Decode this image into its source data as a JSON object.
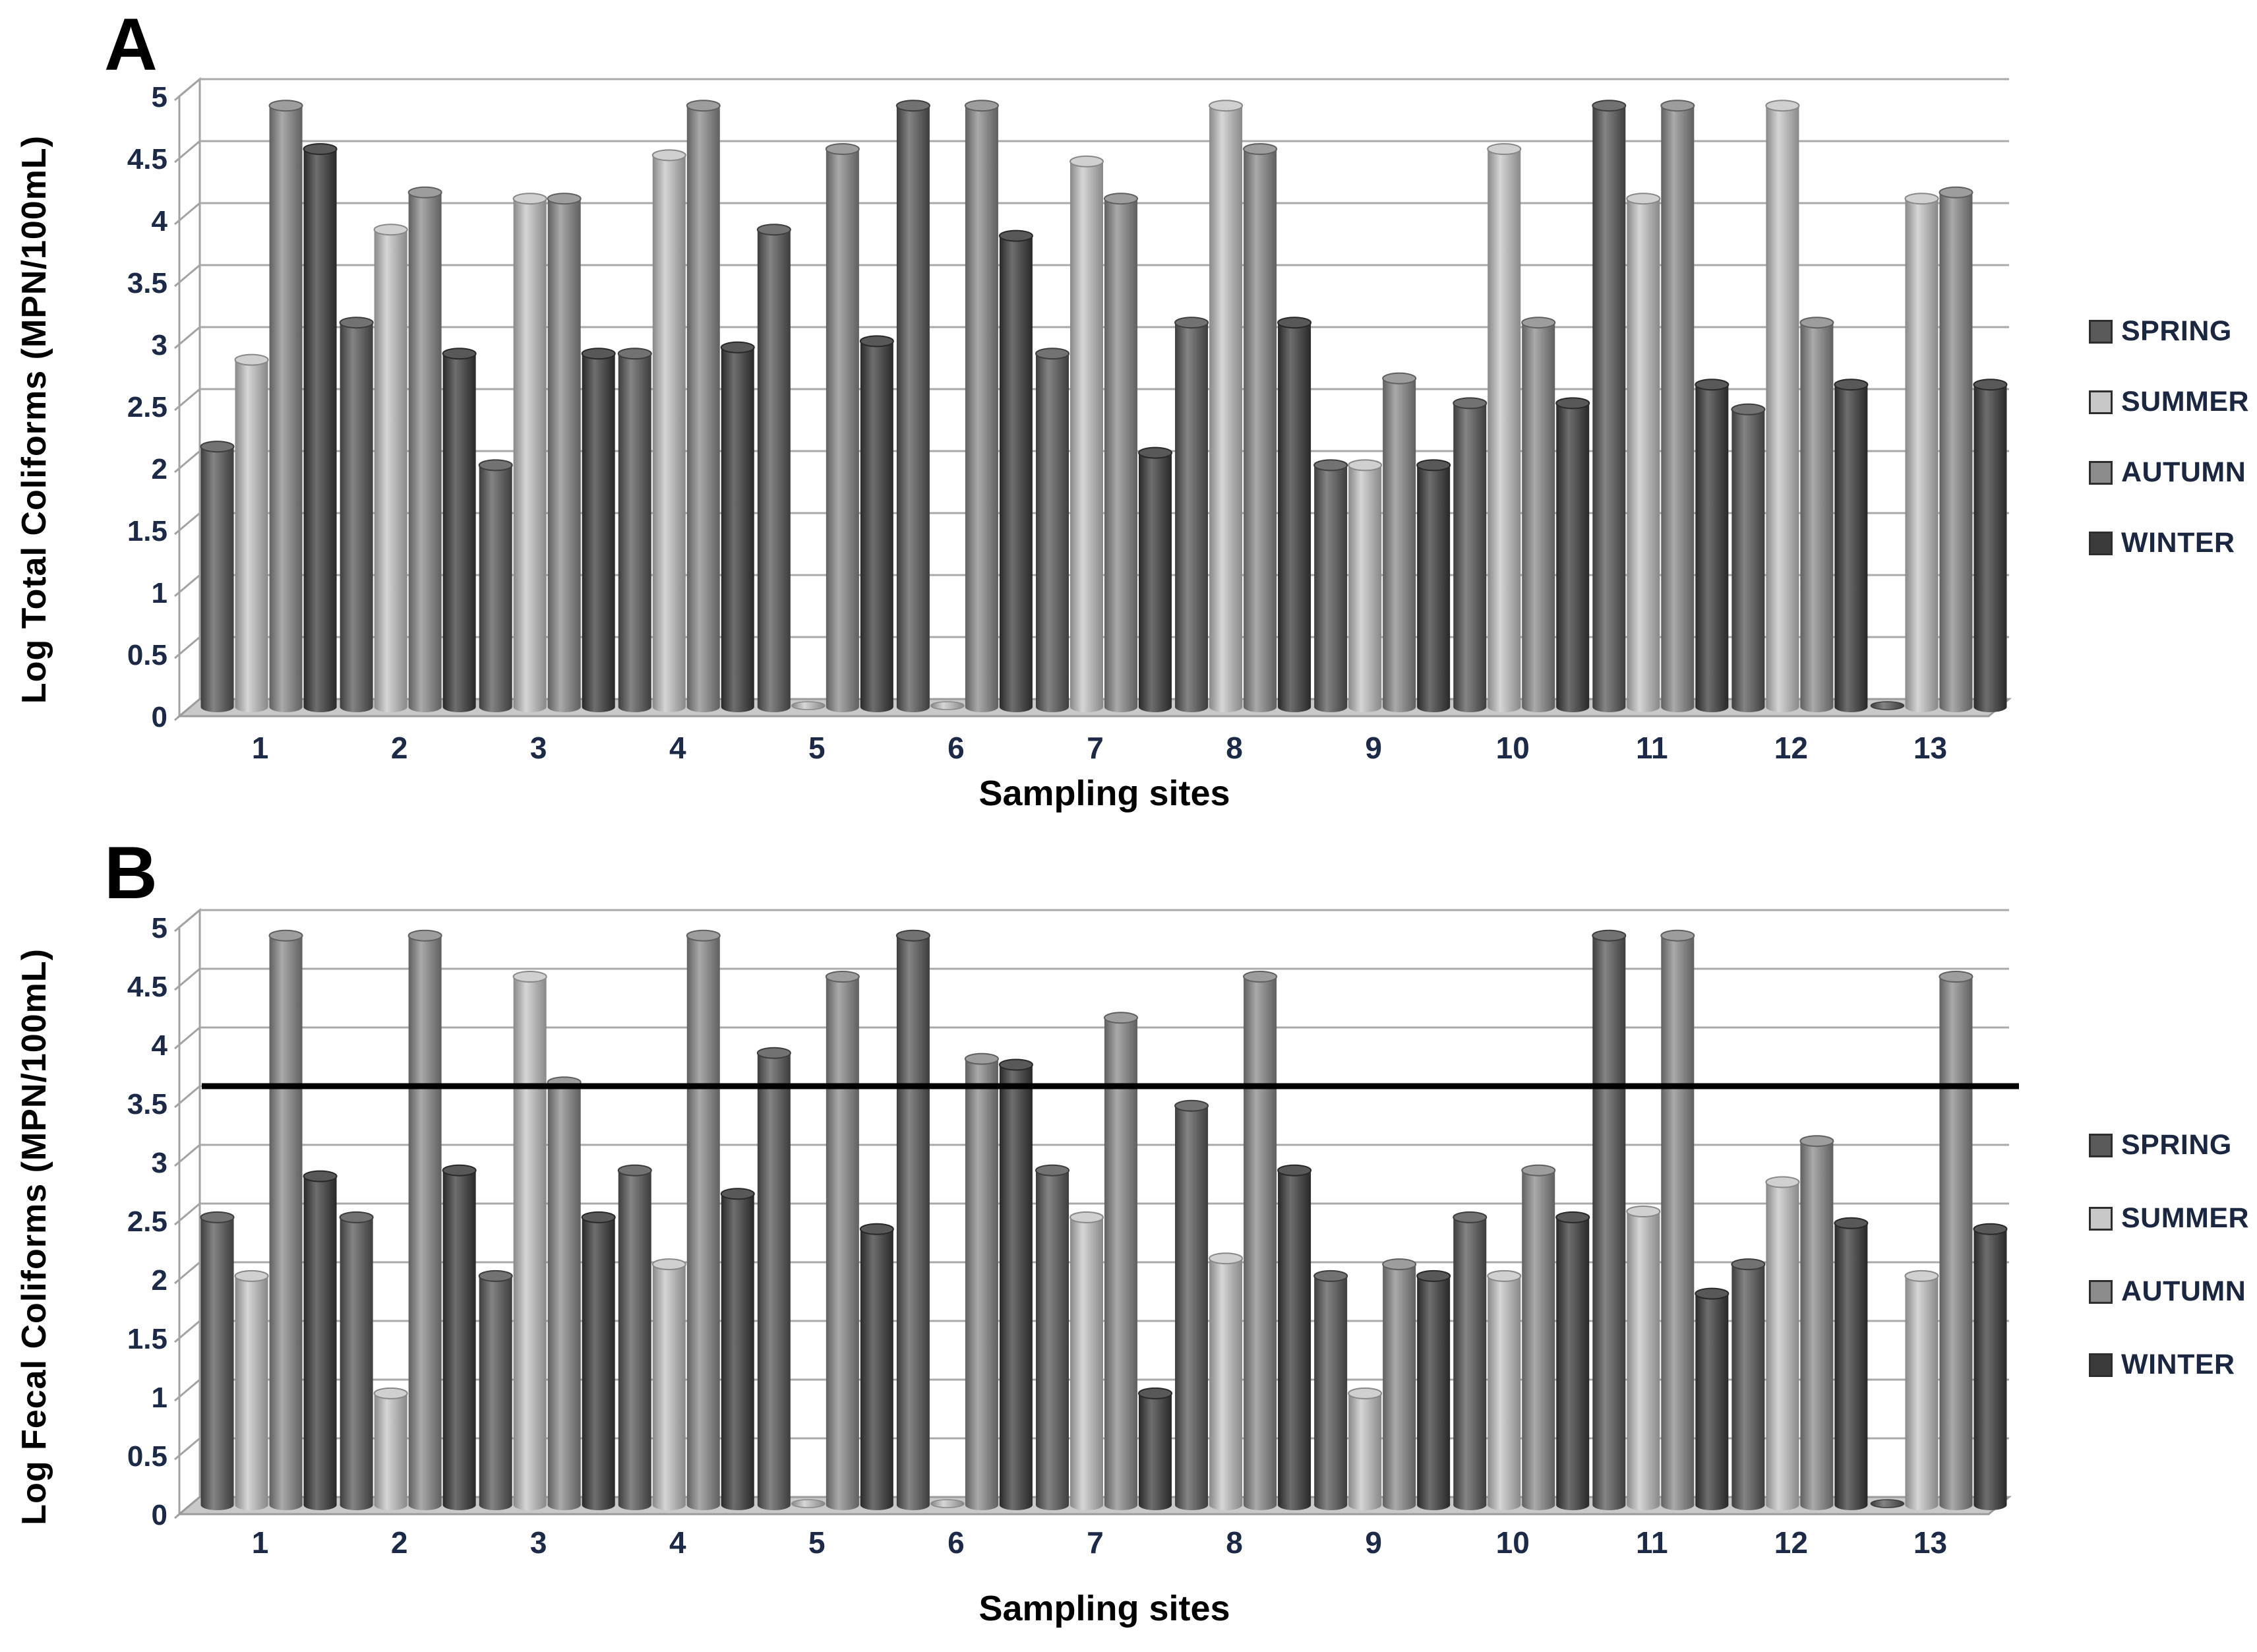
{
  "legend": {
    "items": [
      {
        "label": "SPRING",
        "color": "#595959"
      },
      {
        "label": "SUMMER",
        "color": "#c8c8c8"
      },
      {
        "label": "AUTUMN",
        "color": "#8c8c8c"
      },
      {
        "label": "WINTER",
        "color": "#3b3b3b"
      }
    ]
  },
  "y_tick_labels": [
    "0",
    "0.5",
    "1",
    "1.5",
    "2",
    "2.5",
    "3",
    "3.5",
    "4",
    "4.5",
    "5"
  ],
  "chart_data": [
    {
      "id": "A",
      "panel_label": "A",
      "type": "bar",
      "style": "3d-cylinder",
      "title": "",
      "xlabel": "Sampling sites",
      "ylabel": "Log Total Coliforms  (MPN/100mL)",
      "ylim": [
        0,
        5
      ],
      "ytick_step": 0.5,
      "grid": true,
      "legend_position": "right",
      "categories": [
        "1",
        "2",
        "3",
        "4",
        "5",
        "6",
        "7",
        "8",
        "9",
        "10",
        "11",
        "12",
        "13"
      ],
      "series": [
        {
          "name": "SPRING",
          "color": "#595959",
          "values": [
            2.1,
            3.1,
            1.95,
            2.85,
            3.85,
            4.85,
            2.85,
            3.1,
            1.95,
            2.45,
            4.85,
            2.4,
            0
          ]
        },
        {
          "name": "SUMMER",
          "color": "#c8c8c8",
          "values": [
            2.8,
            3.85,
            4.1,
            4.45,
            0,
            0,
            4.4,
            4.85,
            1.95,
            4.5,
            4.1,
            4.85,
            4.1
          ]
        },
        {
          "name": "AUTUMN",
          "color": "#8c8c8c",
          "values": [
            4.85,
            4.15,
            4.1,
            4.85,
            4.5,
            4.85,
            4.1,
            4.5,
            2.65,
            3.1,
            4.85,
            3.1,
            4.15
          ]
        },
        {
          "name": "WINTER",
          "color": "#3b3b3b",
          "values": [
            4.5,
            2.85,
            2.85,
            2.9,
            2.95,
            3.8,
            2.05,
            3.1,
            1.95,
            2.45,
            2.6,
            2.6,
            2.6
          ]
        }
      ]
    },
    {
      "id": "B",
      "panel_label": "B",
      "type": "bar",
      "style": "3d-cylinder",
      "title": "",
      "xlabel": "Sampling sites",
      "ylabel": "Log Fecal Coliforms  (MPN/100mL)",
      "ylim": [
        0,
        5
      ],
      "ytick_step": 0.5,
      "grid": true,
      "legend_position": "right",
      "threshold_line": {
        "value": 3.5,
        "color": "#000000"
      },
      "categories": [
        "1",
        "2",
        "3",
        "4",
        "5",
        "6",
        "7",
        "8",
        "9",
        "10",
        "11",
        "12",
        "13"
      ],
      "series": [
        {
          "name": "SPRING",
          "color": "#595959",
          "values": [
            2.45,
            2.45,
            1.95,
            2.85,
            3.85,
            4.85,
            2.85,
            3.4,
            1.95,
            2.45,
            4.85,
            2.05,
            0
          ]
        },
        {
          "name": "SUMMER",
          "color": "#c8c8c8",
          "values": [
            1.95,
            0.95,
            4.5,
            2.05,
            0,
            0,
            2.45,
            2.1,
            0.95,
            1.95,
            2.5,
            2.75,
            1.95
          ]
        },
        {
          "name": "AUTUMN",
          "color": "#8c8c8c",
          "values": [
            4.85,
            4.85,
            3.6,
            4.85,
            4.5,
            3.8,
            4.15,
            4.5,
            2.05,
            2.85,
            4.85,
            3.1,
            4.5
          ]
        },
        {
          "name": "WINTER",
          "color": "#3b3b3b",
          "values": [
            2.8,
            2.85,
            2.45,
            2.65,
            2.35,
            3.75,
            0.95,
            2.85,
            1.95,
            2.45,
            1.8,
            2.4,
            2.35
          ]
        }
      ]
    }
  ]
}
